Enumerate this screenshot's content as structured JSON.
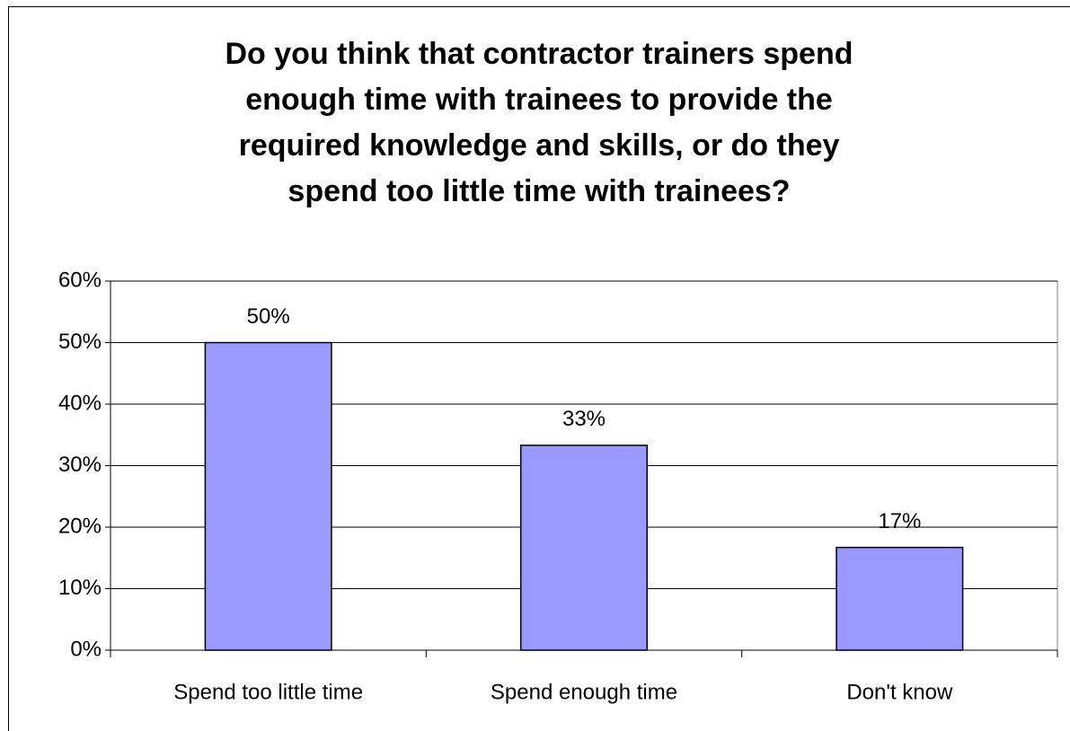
{
  "chart_data": {
    "type": "bar",
    "title": [
      "Do you think that contractor trainers spend",
      "enough time with trainees to provide the",
      "required knowledge and skills, or do they",
      "spend too little time with trainees?"
    ],
    "categories": [
      "Spend too little time",
      "Spend enough time",
      "Don't know"
    ],
    "values": [
      50,
      33.3,
      16.7
    ],
    "value_labels": [
      "50%",
      "33%",
      "17%"
    ],
    "color": "#9999ff",
    "ylim": [
      0,
      60
    ],
    "yticks": [
      {
        "value": 0,
        "label": "0%"
      },
      {
        "value": 10,
        "label": "10%"
      },
      {
        "value": 20,
        "label": "20%"
      },
      {
        "value": 30,
        "label": "30%"
      },
      {
        "value": 40,
        "label": "40%"
      },
      {
        "value": 50,
        "label": "50%"
      },
      {
        "value": 60,
        "label": "60%"
      }
    ],
    "grid": true
  }
}
